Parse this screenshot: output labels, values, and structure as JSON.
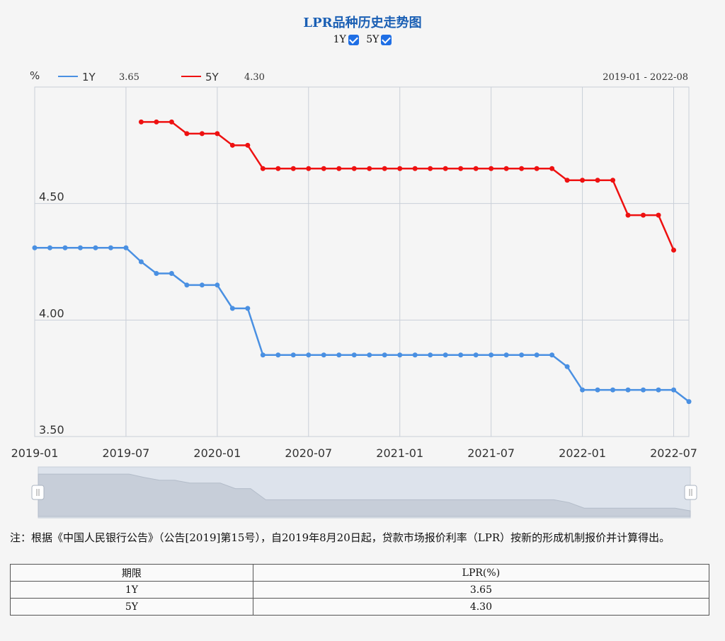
{
  "title": "LPR品种历史走势图",
  "toggles": [
    {
      "label": "1Y",
      "checked": true
    },
    {
      "label": "5Y",
      "checked": true
    }
  ],
  "legend": {
    "unit": "%",
    "items": [
      {
        "name": "1Y",
        "value": "3.65",
        "color": "#4a90e2"
      },
      {
        "name": "5Y",
        "value": "4.30",
        "color": "#ee1111"
      }
    ],
    "range": "2019-01 - 2022-08"
  },
  "chart_data": {
    "type": "line",
    "x_start": "2019-01",
    "x_tick_labels": [
      "2019-01",
      "2019-07",
      "2020-01",
      "2020-07",
      "2021-01",
      "2021-07",
      "2022-01",
      "2022-07"
    ],
    "y_tick_labels": [
      "3.50",
      "4.00",
      "4.50"
    ],
    "ylim": [
      3.5,
      5.0
    ],
    "grid": true,
    "legend_position": "top-left",
    "series": [
      {
        "name": "1Y",
        "color": "#4a90e2",
        "start": "2019-01",
        "values": [
          4.31,
          4.31,
          4.31,
          4.31,
          4.31,
          4.31,
          4.31,
          4.25,
          4.2,
          4.2,
          4.15,
          4.15,
          4.15,
          4.05,
          4.05,
          3.85,
          3.85,
          3.85,
          3.85,
          3.85,
          3.85,
          3.85,
          3.85,
          3.85,
          3.85,
          3.85,
          3.85,
          3.85,
          3.85,
          3.85,
          3.85,
          3.85,
          3.85,
          3.85,
          3.85,
          3.8,
          3.7,
          3.7,
          3.7,
          3.7,
          3.7,
          3.7,
          3.7,
          3.65
        ]
      },
      {
        "name": "5Y",
        "color": "#ee1111",
        "start": "2019-08",
        "values": [
          4.85,
          4.85,
          4.85,
          4.8,
          4.8,
          4.8,
          4.75,
          4.75,
          4.65,
          4.65,
          4.65,
          4.65,
          4.65,
          4.65,
          4.65,
          4.65,
          4.65,
          4.65,
          4.65,
          4.65,
          4.65,
          4.65,
          4.65,
          4.65,
          4.65,
          4.65,
          4.65,
          4.65,
          4.6,
          4.6,
          4.6,
          4.6,
          4.45,
          4.45,
          4.45,
          4.3
        ]
      }
    ]
  },
  "note": "注：根据《中国人民银行公告》（公告[2019]第15号），自2019年8月20日起，贷款市场报价利率（LPR）按新的形成机制报价并计算得出。",
  "table": {
    "headers": [
      "期限",
      "LPR(%)"
    ],
    "rows": [
      [
        "1Y",
        "3.65"
      ],
      [
        "5Y",
        "4.30"
      ]
    ]
  }
}
